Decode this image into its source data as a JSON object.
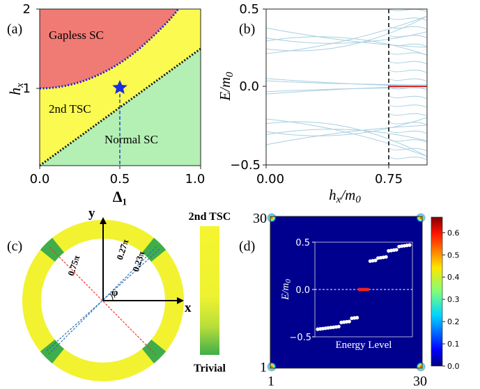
{
  "panels": {
    "a": {
      "label": "(a)",
      "xlabel": "Δ₁",
      "ylabel": "h",
      "ylabel_sub": "x",
      "x_ticks": [
        "0.0",
        "0.5",
        "1.0"
      ],
      "y_ticks": [
        "1",
        "2"
      ],
      "regions": [
        "Gapless SC",
        "2nd TSC",
        "Normal SC"
      ],
      "colors": {
        "gapless": "#f07a74",
        "tsc": "#fafa50",
        "normal": "#b4efb4",
        "upper_boundary": "#1f1fd0",
        "lower_boundary": "#111111",
        "marker": "#1a2ee0",
        "path": "#2255cc"
      },
      "marker": {
        "delta1": 0.5,
        "hx": 1.0
      }
    },
    "b": {
      "label": "(b)",
      "xlabel": "h",
      "xlabel_sub": "x",
      "xlabel_suffix": "/m",
      "xlabel_suffix_sub": "0",
      "ylabel": "E/m",
      "ylabel_sub": "0",
      "x_ticks": [
        "0.00",
        "0.75"
      ],
      "y_ticks": [
        "0.5",
        "0.0",
        "−0.5"
      ],
      "colors": {
        "bands": "#a8cfe0",
        "zero_mode": "#dd2222",
        "dashed": "#111111"
      }
    },
    "c": {
      "label": "(c)",
      "axis_x": "x",
      "axis_y": "y",
      "angle_symbol": "φ",
      "angles": [
        "0.75π",
        "0.27π",
        "0.23π"
      ],
      "colorbar_top": "2nd TSC",
      "colorbar_bottom": "Trivial",
      "colors": {
        "ring": "#f2f230",
        "trivial": "#3fae4a",
        "red_line": "#ee3333",
        "blue_line": "#2c6fb0"
      }
    },
    "d": {
      "label": "(d)",
      "x_ticks": [
        "1",
        "30"
      ],
      "y_ticks": [
        "1",
        "30"
      ],
      "colorbar_ticks": [
        "0.0",
        "0.1",
        "0.2",
        "0.3",
        "0.4",
        "0.5",
        "0.6"
      ],
      "inset": {
        "xlabel": "Energy Level",
        "ylabel": "E/m",
        "ylabel_sub": "0",
        "y_ticks": [
          "0.5",
          "0.0",
          "−0.5"
        ]
      },
      "colors": {
        "background": "#00008f",
        "zero_mode": "#ee2222"
      }
    }
  }
}
